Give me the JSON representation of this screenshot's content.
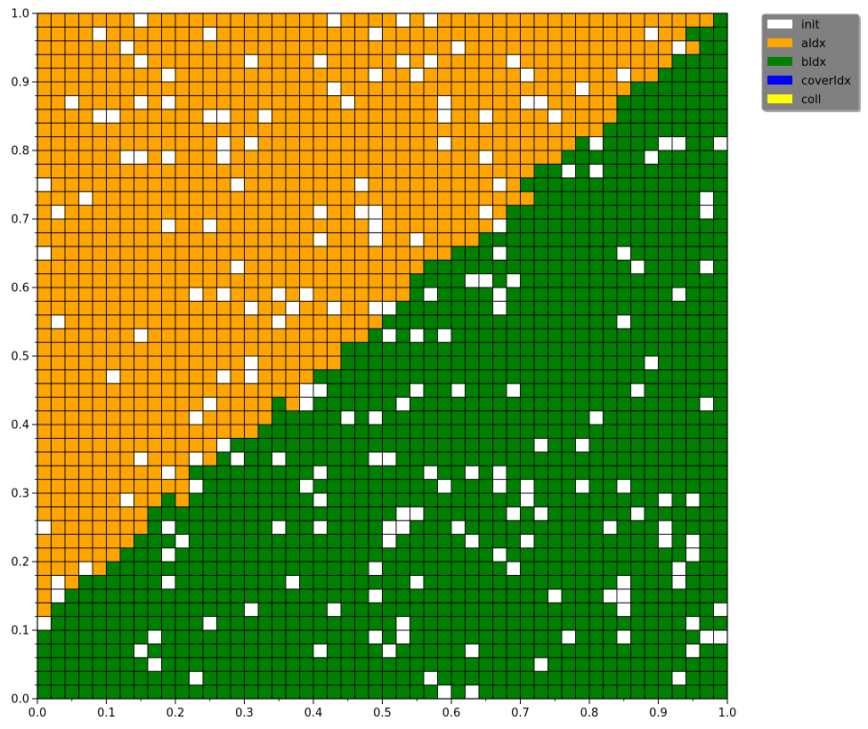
{
  "chart_data": {
    "type": "heatmap",
    "grid_size": 50,
    "xlim": [
      0,
      1
    ],
    "ylim": [
      0,
      1
    ],
    "x_ticks": [
      {
        "value": 0.0,
        "label": "0.0"
      },
      {
        "value": 0.1,
        "label": "0.1"
      },
      {
        "value": 0.2,
        "label": "0.2"
      },
      {
        "value": 0.3,
        "label": "0.3"
      },
      {
        "value": 0.4,
        "label": "0.4"
      },
      {
        "value": 0.5,
        "label": "0.5"
      },
      {
        "value": 0.6,
        "label": "0.6"
      },
      {
        "value": 0.7,
        "label": "0.7"
      },
      {
        "value": 0.8,
        "label": "0.8"
      },
      {
        "value": 0.9,
        "label": "0.9"
      },
      {
        "value": 1.0,
        "label": "1.0"
      }
    ],
    "y_ticks": [
      {
        "value": 0.0,
        "label": "0.0"
      },
      {
        "value": 0.1,
        "label": "0.1"
      },
      {
        "value": 0.2,
        "label": "0.2"
      },
      {
        "value": 0.3,
        "label": "0.3"
      },
      {
        "value": 0.4,
        "label": "0.4"
      },
      {
        "value": 0.5,
        "label": "0.5"
      },
      {
        "value": 0.6,
        "label": "0.6"
      },
      {
        "value": 0.7,
        "label": "0.7"
      },
      {
        "value": 0.8,
        "label": "0.8"
      },
      {
        "value": 0.9,
        "label": "0.9"
      },
      {
        "value": 1.0,
        "label": "1.0"
      }
    ],
    "grid": true,
    "legend_position": "outside-top-right",
    "legend": [
      {
        "label": "init",
        "color": "#ffffff"
      },
      {
        "label": "aIdx",
        "color": "#ffa500"
      },
      {
        "label": "bIdx",
        "color": "#008000"
      },
      {
        "label": "coverIdx",
        "color": "#0000ff"
      },
      {
        "label": "coll",
        "color": "#ffff00"
      }
    ],
    "cell_colors": {
      "init": "#ffffff",
      "aIdx": "#ffa500",
      "bIdx": "#008000"
    },
    "boundary_model": "cells with x_idx > 1.12*y_idx - 6 (approx.) are bIdx, others aIdx; scattered init cells",
    "init_fraction": 0.08
  }
}
